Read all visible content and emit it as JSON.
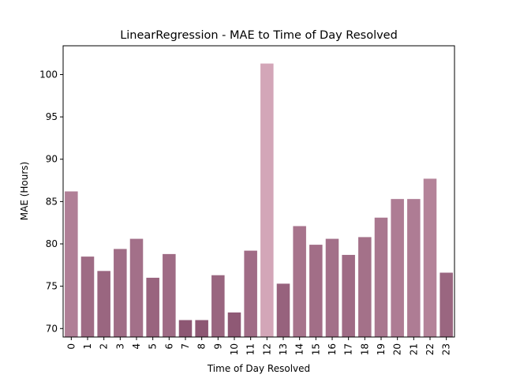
{
  "chart_data": {
    "type": "bar",
    "title": "LinearRegression - MAE to Time of Day Resolved",
    "xlabel": "Time of Day Resolved",
    "ylabel": "MAE (Hours)",
    "categories": [
      "0",
      "1",
      "2",
      "3",
      "4",
      "5",
      "6",
      "7",
      "8",
      "9",
      "10",
      "11",
      "12",
      "13",
      "14",
      "15",
      "16",
      "17",
      "18",
      "19",
      "20",
      "21",
      "22",
      "23"
    ],
    "values": [
      86.2,
      78.5,
      76.8,
      79.4,
      80.6,
      76.0,
      78.8,
      71.0,
      71.0,
      76.3,
      71.9,
      79.2,
      101.3,
      75.3,
      82.1,
      79.9,
      80.6,
      78.7,
      80.8,
      83.1,
      85.3,
      85.3,
      87.7,
      76.6
    ],
    "ylim": [
      69.0,
      103.4
    ],
    "yticks": [
      70,
      75,
      80,
      85,
      90,
      95,
      100
    ],
    "grid": false,
    "bar_color": {
      "low": "#8d5773",
      "high": "#d3a6b8",
      "note_free": true
    }
  }
}
